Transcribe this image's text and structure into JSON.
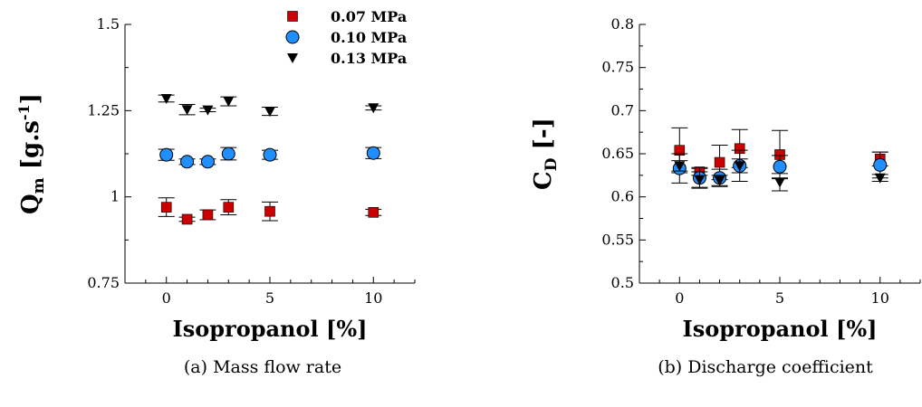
{
  "captions": {
    "a": "(a) Mass flow rate",
    "b": "(b) Discharge coefficient"
  },
  "colors": {
    "series_0_07": "#cc0000",
    "series_0_10": "#1f8fff",
    "series_0_13": "#000000"
  },
  "chart_data": [
    {
      "type": "scatter",
      "xlabel": "Isopropanol [%]",
      "ylabel_main": "Q",
      "ylabel_sub": "m",
      "ylabel_unit": "[g.s",
      "ylabel_unit_sup": "-1",
      "ylabel_unit_end": "]",
      "xlim": [
        -2,
        12
      ],
      "ylim": [
        0.75,
        1.5
      ],
      "xticks": [
        0,
        5,
        10
      ],
      "xtick_labels": [
        "0",
        "5",
        "10"
      ],
      "yticks": [
        0.75,
        1,
        1.25,
        1.5
      ],
      "ytick_labels": [
        "0.75",
        "1",
        "1.25",
        "1.5"
      ],
      "legend": "top-center",
      "series": [
        {
          "name": "0.07 MPa",
          "marker": "square",
          "x": [
            0,
            1,
            2,
            3,
            5,
            10
          ],
          "y": [
            0.97,
            0.935,
            0.948,
            0.97,
            0.958,
            0.955
          ],
          "err": [
            0.027,
            0.006,
            0.014,
            0.022,
            0.027,
            0.009
          ]
        },
        {
          "name": "0.10 MPa",
          "marker": "circle",
          "x": [
            0,
            1,
            2,
            3,
            5,
            10
          ],
          "y": [
            1.122,
            1.102,
            1.102,
            1.125,
            1.122,
            1.127
          ],
          "err": [
            0.016,
            0.008,
            0.008,
            0.018,
            0.013,
            0.016
          ]
        },
        {
          "name": "0.13 MPa",
          "marker": "triangle-down",
          "x": [
            0,
            1,
            2,
            3,
            5,
            10
          ],
          "y": [
            1.285,
            1.253,
            1.252,
            1.277,
            1.248,
            1.258
          ],
          "err": [
            0.01,
            0.015,
            0.005,
            0.013,
            0.012,
            0.006
          ]
        }
      ]
    },
    {
      "type": "scatter",
      "xlabel": "Isopropanol [%]",
      "ylabel_main": "C",
      "ylabel_sub": "D",
      "ylabel_unit": "[-]",
      "ylabel_unit_sup": "",
      "ylabel_unit_end": "",
      "xlim": [
        -2,
        12
      ],
      "ylim": [
        0.5,
        0.8
      ],
      "xticks": [
        0,
        5,
        10
      ],
      "xtick_labels": [
        "0",
        "5",
        "10"
      ],
      "yticks": [
        0.5,
        0.55,
        0.6,
        0.65,
        0.7,
        0.75,
        0.8
      ],
      "ytick_labels": [
        "0.5",
        "0.55",
        "0.6",
        "0.65",
        "0.7",
        "0.75",
        "0.8"
      ],
      "legend": "none",
      "series": [
        {
          "name": "0.07 MPa",
          "marker": "square",
          "x": [
            0,
            1,
            2,
            3,
            5,
            10
          ],
          "y": [
            0.654,
            0.629,
            0.64,
            0.656,
            0.649,
            0.644
          ],
          "err": [
            0.026,
            0.004,
            0.02,
            0.022,
            0.028,
            0.008
          ]
        },
        {
          "name": "0.10 MPa",
          "marker": "circle",
          "x": [
            0,
            1,
            2,
            3,
            5,
            10
          ],
          "y": [
            0.633,
            0.622,
            0.622,
            0.636,
            0.635,
            0.637
          ],
          "err": [
            0.017,
            0.012,
            0.01,
            0.018,
            0.013,
            0.015
          ]
        },
        {
          "name": "0.13 MPa",
          "marker": "triangle-down",
          "x": [
            0,
            1,
            2,
            3,
            5,
            10
          ],
          "y": [
            0.636,
            0.62,
            0.619,
            0.636,
            0.617,
            0.622
          ],
          "err": [
            0.006,
            0.009,
            0.006,
            0.008,
            0.01,
            0.004
          ]
        }
      ]
    }
  ]
}
